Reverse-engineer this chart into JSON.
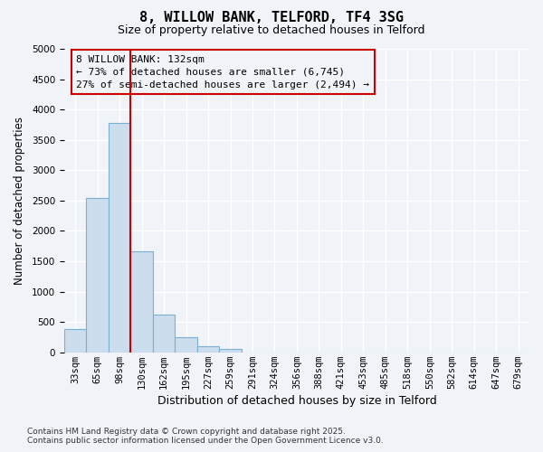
{
  "title_line1": "8, WILLOW BANK, TELFORD, TF4 3SG",
  "title_line2": "Size of property relative to detached houses in Telford",
  "xlabel": "Distribution of detached houses by size in Telford",
  "ylabel": "Number of detached properties",
  "bar_labels": [
    "33sqm",
    "65sqm",
    "98sqm",
    "130sqm",
    "162sqm",
    "195sqm",
    "227sqm",
    "259sqm",
    "291sqm",
    "324sqm",
    "356sqm",
    "388sqm",
    "421sqm",
    "453sqm",
    "485sqm",
    "518sqm",
    "550sqm",
    "582sqm",
    "614sqm",
    "647sqm",
    "679sqm"
  ],
  "bar_values": [
    380,
    2550,
    3780,
    1670,
    620,
    250,
    105,
    50,
    0,
    0,
    0,
    0,
    0,
    0,
    0,
    0,
    0,
    0,
    0,
    0,
    0
  ],
  "bar_color": "#ccdded",
  "bar_edgecolor": "#7ab0d0",
  "property_line_idx": 3,
  "property_line_color": "#cc0000",
  "ylim": [
    0,
    5000
  ],
  "yticks": [
    0,
    500,
    1000,
    1500,
    2000,
    2500,
    3000,
    3500,
    4000,
    4500,
    5000
  ],
  "annotation_text": "8 WILLOW BANK: 132sqm\n← 73% of detached houses are smaller (6,745)\n27% of semi-detached houses are larger (2,494) →",
  "annotation_box_edgecolor": "#cc0000",
  "footnote": "Contains HM Land Registry data © Crown copyright and database right 2025.\nContains public sector information licensed under the Open Government Licence v3.0.",
  "plot_bg_color": "#f0f4f8",
  "fig_bg_color": "#f0f4f8",
  "grid_color": "#ffffff",
  "title1_fontsize": 11,
  "title2_fontsize": 9,
  "ylabel_fontsize": 8.5,
  "xlabel_fontsize": 9,
  "tick_fontsize": 7.5,
  "annot_fontsize": 8,
  "footnote_fontsize": 6.5
}
